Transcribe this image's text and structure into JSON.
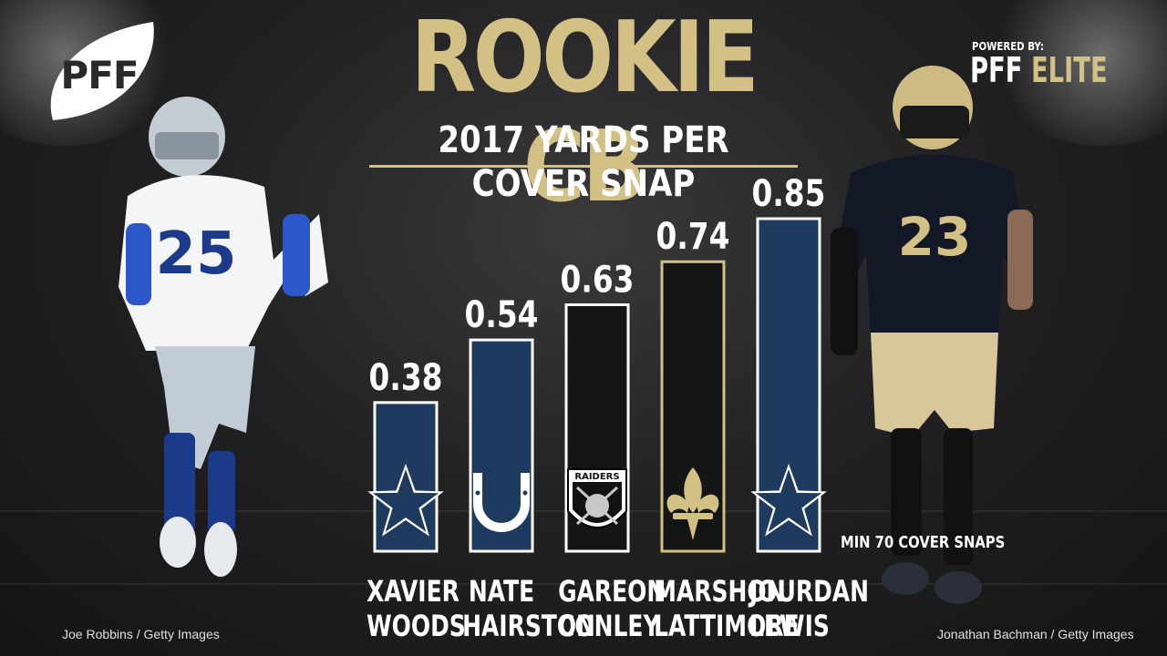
{
  "header": {
    "title": "ROOKIE CB",
    "subtitle": "2017 YARDS PER COVER SNAP"
  },
  "branding": {
    "logo_text": "PFF",
    "powered_by_label": "POWERED BY:",
    "powered_by_brand_1": "PFF",
    "powered_by_brand_2": "ELITE"
  },
  "note": "MIN 70 COVER SNAPS",
  "credits": {
    "left": "Joe Robbins / Getty Images",
    "right": "Jonathan Bachman / Getty Images"
  },
  "colors": {
    "gold": "#d2c085",
    "navy": "#1e3a5f",
    "black": "#151515",
    "text": "#ffffff"
  },
  "chart_data": {
    "type": "bar",
    "title": "2017 YARDS PER COVER SNAP",
    "categories": [
      "XAVIER WOODS",
      "NATE HAIRSTON",
      "GAREON CONLEY",
      "MARSHON LATTIMORE",
      "JOURDAN LEWIS"
    ],
    "name_lines": [
      [
        "XAVIER",
        "WOODS"
      ],
      [
        "NATE",
        "HAIRSTON"
      ],
      [
        "GAREON",
        "CONLEY"
      ],
      [
        "MARSHON",
        "LATTIMORE"
      ],
      [
        "JOURDAN",
        "LEWIS"
      ]
    ],
    "values": [
      0.38,
      0.54,
      0.63,
      0.74,
      0.85
    ],
    "value_labels": [
      "0.38",
      "0.54",
      "0.63",
      "0.74",
      "0.85"
    ],
    "teams": [
      "Cowboys",
      "Colts",
      "Raiders",
      "Saints",
      "Cowboys"
    ],
    "team_logo_icons": [
      "star-icon",
      "horseshoe-icon",
      "raiders-shield-icon",
      "fleur-de-lis-icon",
      "star-icon"
    ],
    "team_logo_text": [
      "",
      "",
      "RAIDERS",
      "",
      ""
    ],
    "bar_colors": [
      "#1e3a5f",
      "#1e3a5f",
      "#151515",
      "#151515",
      "#1e3a5f"
    ],
    "bar_outline_colors": [
      "#ffffff",
      "#ffffff",
      "#ffffff",
      "#d2c085",
      "#ffffff"
    ],
    "ylim": [
      0,
      0.85
    ],
    "grid": false,
    "legend": "none"
  }
}
